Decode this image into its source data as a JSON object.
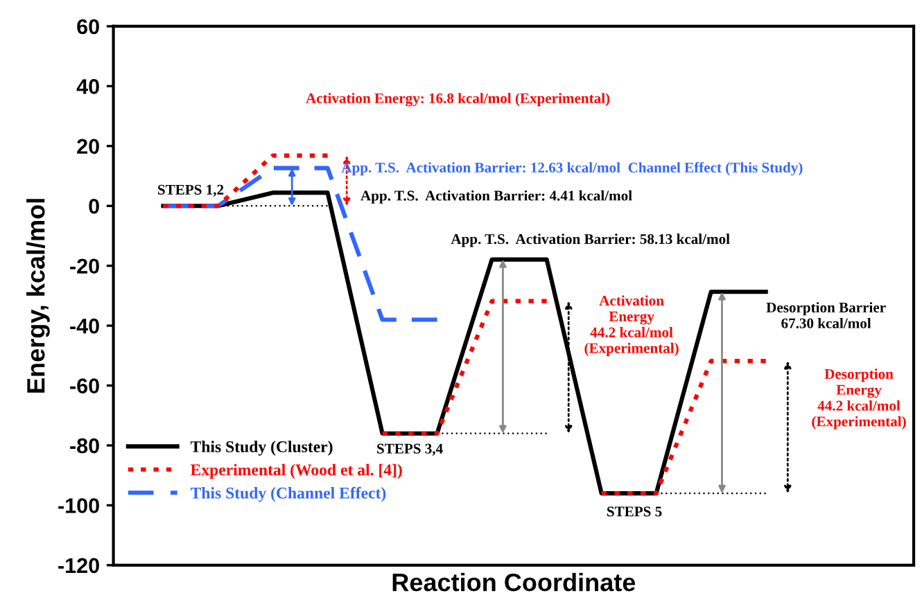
{
  "chart_data": {
    "type": "line",
    "xlabel": "Reaction Coordinate",
    "ylabel": "Energy, kcal/mol",
    "categories": [
      null,
      null,
      null,
      null,
      null,
      null,
      null,
      null,
      null,
      null,
      null,
      null
    ],
    "ylim": [
      -120,
      60
    ],
    "yticks": [
      -120,
      -100,
      -80,
      -60,
      -40,
      -20,
      0,
      20,
      40,
      60
    ],
    "tick_labels": "y",
    "grid": false,
    "legend": "bottom left",
    "series": [
      {
        "name": "This Study (Cluster)",
        "color": "#000000",
        "line_style": "solid",
        "values": [
          0,
          0,
          4.41,
          4.41,
          -76,
          -76,
          -17.9,
          -17.9,
          -96,
          -96,
          -28.7,
          -28.7
        ]
      },
      {
        "name": "Experimental (Wood et al. [4])",
        "color": "#ff0000",
        "line_style": "dotted",
        "values": [
          0,
          0,
          16.8,
          16.8,
          null,
          null,
          null,
          null,
          null,
          null,
          null,
          null
        ]
      },
      {
        "name": "This Study (Channel Effect)",
        "color": "#3366ff",
        "line_style": "dashed",
        "values": [
          0,
          0,
          12.63,
          12.63,
          -38,
          -38,
          null,
          null,
          null,
          null,
          null,
          null
        ]
      },
      {
        "color": "#ff0000",
        "line_style": "dotted",
        "values": [
          null,
          null,
          null,
          null,
          -76,
          -76,
          -31.8,
          -31.8,
          null,
          null,
          null,
          null
        ]
      },
      {
        "color": "#ff0000",
        "line_style": "dotted",
        "values": [
          null,
          null,
          null,
          null,
          null,
          null,
          null,
          null,
          -96,
          -96,
          -51.8,
          -51.8
        ]
      },
      {
        "color": "#000000",
        "line_style": "dotted",
        "values": [
          null,
          0,
          0,
          0,
          null,
          -76,
          -76,
          -76,
          null,
          -96,
          -96,
          -96
        ]
      }
    ],
    "annotations": [
      "STEPS 1,2",
      "Activation Energy: 16.8 kcal/mol (Experimental)",
      "App. T.S.  Activation Barrier: 12.63 kcal/mol  Channel Effect (This Study)",
      "App. T.S.  Activation Barrier: 4.41 kcal/mol",
      "App. T.S.  Activation Barrier: 58.13 kcal/mol",
      "Activation\nEnergy\n44.2 kcal/mol\n(Experimental)",
      "Desorption Barrier\n67.30 kcal/mol",
      "Desorption\nEnergy\n44.2 kcal/mol\n(Experimental)",
      "STEPS 3,4",
      "STEPS 5"
    ]
  }
}
